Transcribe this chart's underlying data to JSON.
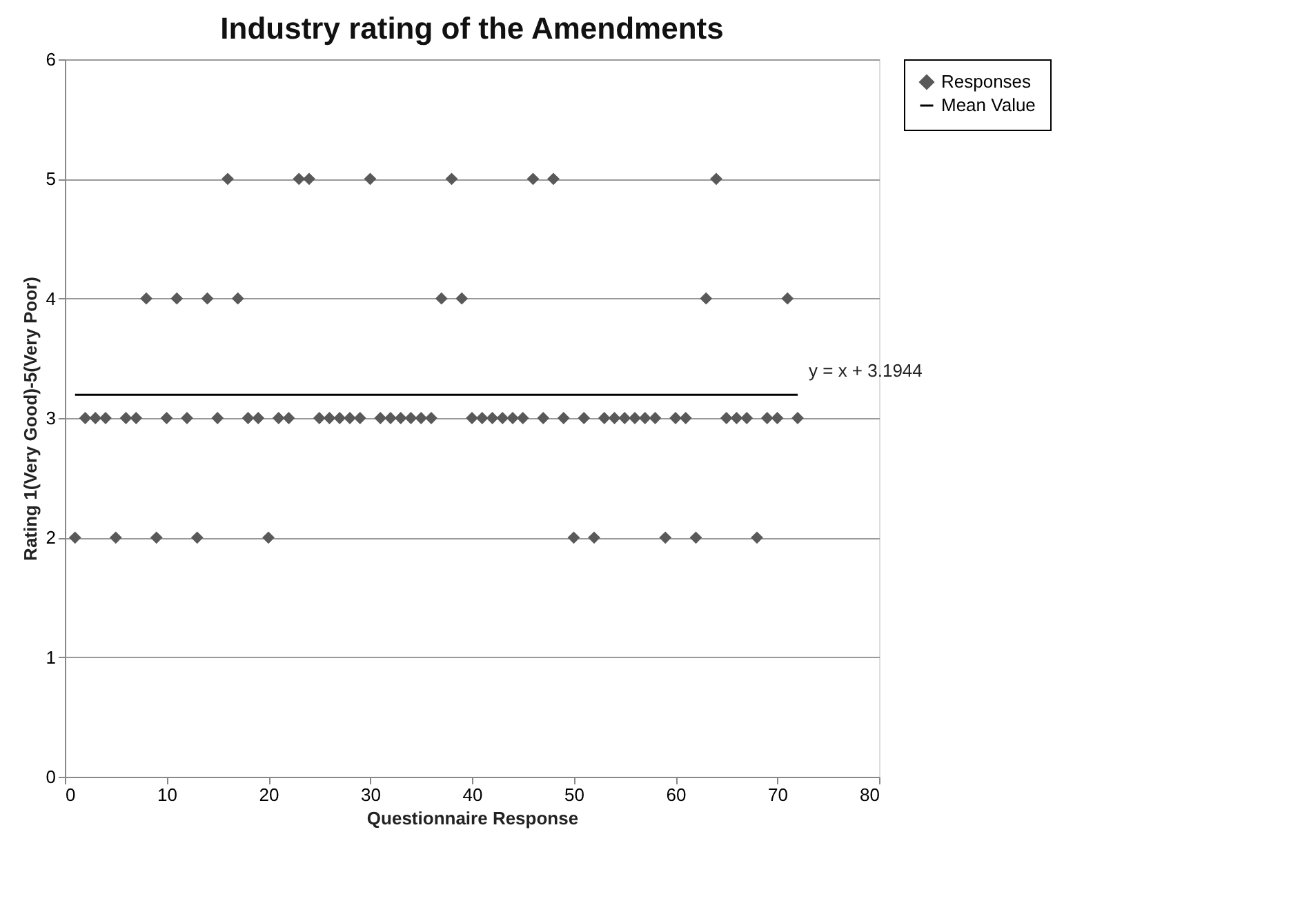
{
  "chart_data": {
    "type": "scatter",
    "title": "Industry rating of the Amendments",
    "xlabel": "Questionnaire Response",
    "ylabel": "Rating 1(Very Good)-5(Very Poor)",
    "x": [
      1,
      2,
      3,
      4,
      5,
      6,
      7,
      8,
      9,
      10,
      11,
      12,
      13,
      14,
      15,
      16,
      17,
      18,
      19,
      20,
      21,
      22,
      23,
      24,
      25,
      26,
      27,
      28,
      29,
      30,
      31,
      32,
      33,
      34,
      35,
      36,
      37,
      38,
      39,
      40,
      41,
      42,
      43,
      44,
      45,
      46,
      47,
      48,
      49,
      50,
      51,
      52,
      53,
      54,
      55,
      56,
      57,
      58,
      59,
      60,
      61,
      62,
      63,
      64,
      65,
      66,
      67,
      68,
      69,
      70,
      71,
      72
    ],
    "series": [
      {
        "name": "Responses",
        "marker": "diamond",
        "color": "#595959",
        "values": [
          2,
          3,
          3,
          3,
          2,
          3,
          3,
          4,
          2,
          3,
          4,
          3,
          2,
          4,
          3,
          5,
          4,
          3,
          3,
          2,
          3,
          3,
          5,
          5,
          3,
          3,
          3,
          3,
          3,
          5,
          3,
          3,
          3,
          3,
          3,
          3,
          4,
          5,
          4,
          3,
          3,
          3,
          3,
          3,
          3,
          5,
          3,
          5,
          3,
          2,
          3,
          2,
          3,
          3,
          3,
          3,
          3,
          3,
          2,
          3,
          3,
          2,
          4,
          5,
          3,
          3,
          3,
          2,
          3,
          3,
          4,
          3
        ]
      },
      {
        "name": "Mean Value",
        "type": "line",
        "line_style": "solid",
        "color": "#000000",
        "x": [
          1,
          72
        ],
        "values": [
          3.1944,
          3.1944
        ]
      }
    ],
    "annotations": [
      {
        "text": "y = x + 3.1944",
        "x": 72,
        "y": 3.1944
      }
    ],
    "xlim": [
      0,
      80
    ],
    "xticks": [
      0,
      10,
      20,
      30,
      40,
      50,
      60,
      70,
      80
    ],
    "ylim": [
      0,
      6
    ],
    "yticks": [
      0,
      1,
      2,
      3,
      4,
      5,
      6
    ],
    "grid": "y",
    "legend": "right"
  }
}
